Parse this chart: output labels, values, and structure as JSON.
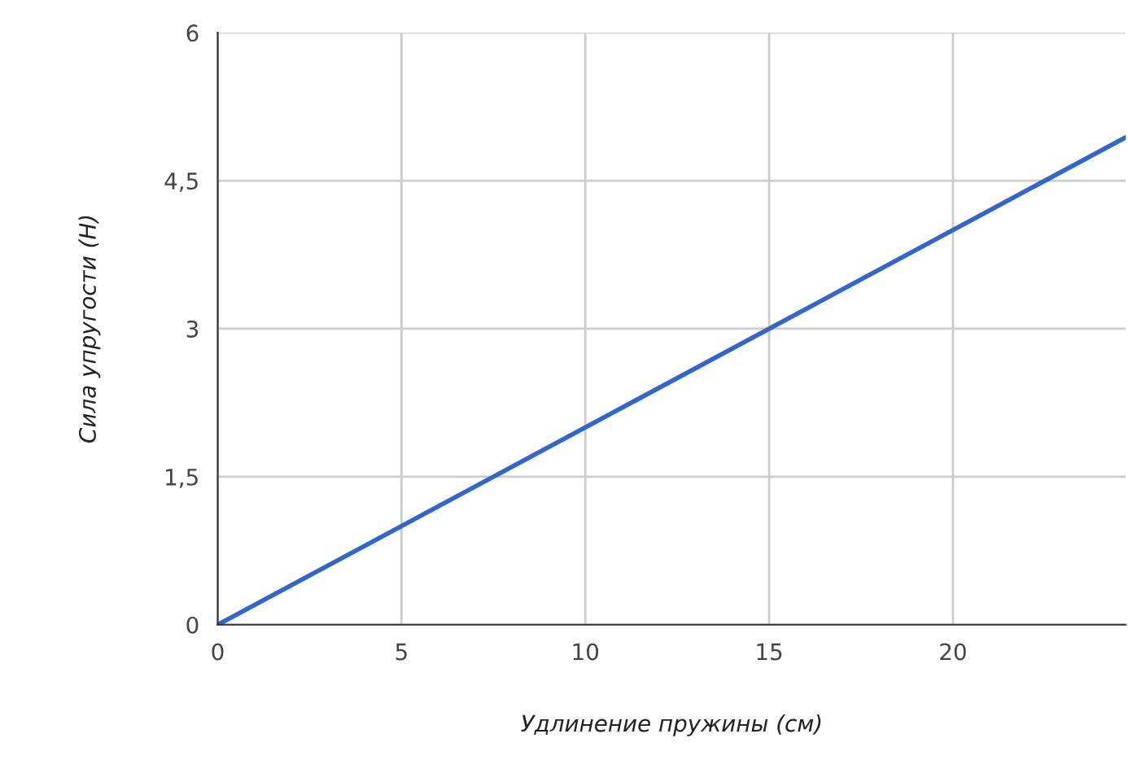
{
  "chart_data": {
    "type": "line",
    "xlabel": "Удлинение пружины (см)",
    "ylabel": "Сила упругости (Н)",
    "x": [
      0,
      24.7
    ],
    "series": [
      {
        "color": "#3366cc",
        "values": [
          0,
          4.94
        ]
      }
    ],
    "xlim": [
      0,
      24.7
    ],
    "xticks": [
      0,
      5,
      10,
      15,
      20
    ],
    "ylim": [
      0,
      6
    ],
    "yticks": [
      0,
      {
        "value": 1.5,
        "label": "1,5"
      },
      3,
      {
        "value": 4.5,
        "label": "4,5"
      },
      6
    ],
    "grid": true,
    "marker": "none",
    "line_style": "solid"
  }
}
